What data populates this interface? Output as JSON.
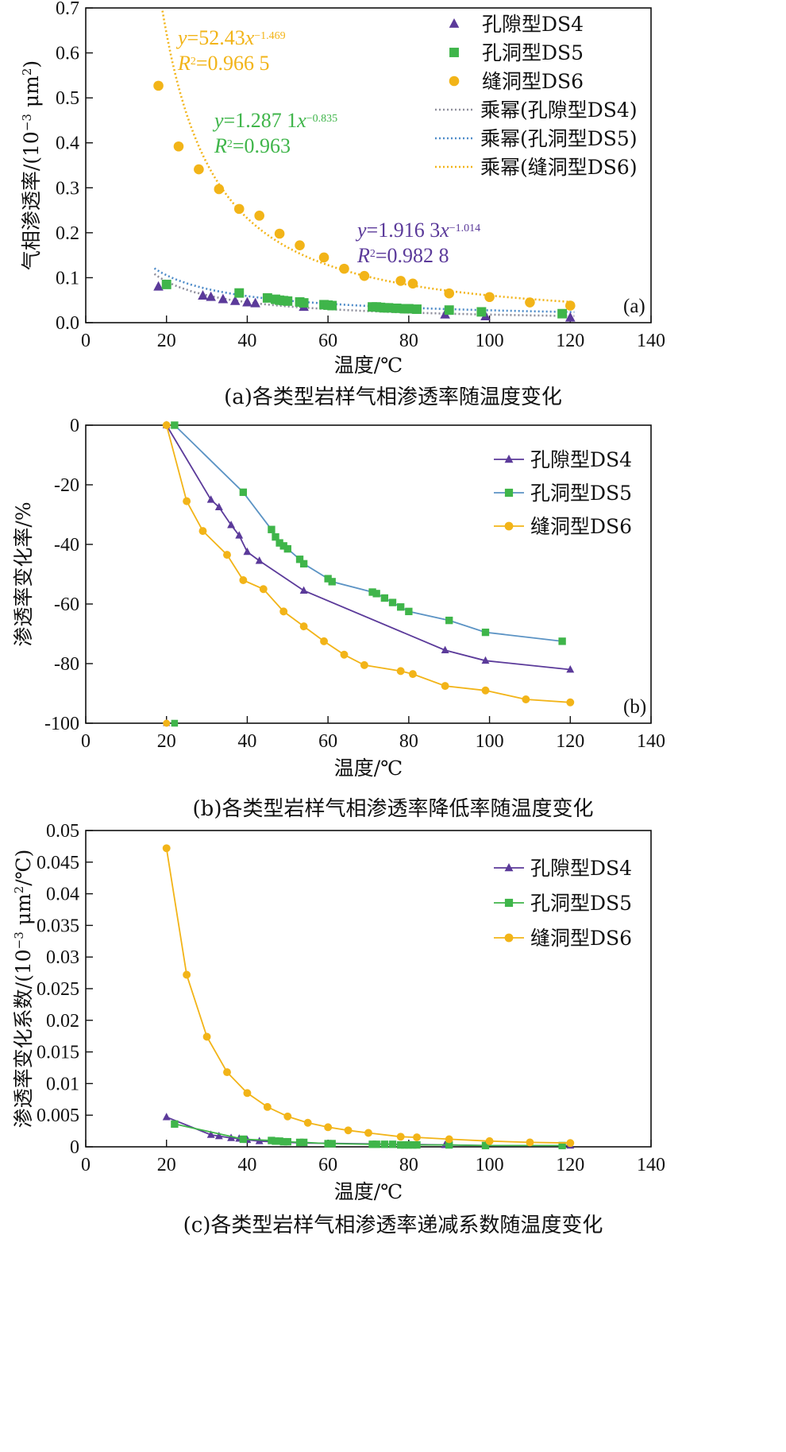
{
  "colors": {
    "DS4": "#5b3a9a",
    "DS5": "#3fb54a",
    "DS6": "#f2b418",
    "DS5_line_b": "#5b93c4"
  },
  "chart_data": [
    {
      "type": "scatter",
      "panel_tag": "(a)",
      "caption": "(a)各类型岩样气相渗透率随温度变化",
      "xlabel": "温度/℃",
      "ylabel": "气相渗透率/(10",
      "ylabel_sup": "−3",
      "ylabel_tail": "μm",
      "ylabel_sup2": "2",
      "ylabel_close": ")",
      "xlim": [
        0,
        140
      ],
      "ylim": [
        0,
        0.7
      ],
      "xticks": [
        "0",
        "20",
        "40",
        "60",
        "80",
        "100",
        "120",
        "140"
      ],
      "yticks": [
        "0.0",
        "0.1",
        "0.2",
        "0.3",
        "0.4",
        "0.5",
        "0.6",
        "0.7"
      ],
      "legend": [
        "孔隙型DS4",
        "孔洞型DS5",
        "缝洞型DS6",
        "乘幂(孔隙型DS4)",
        "乘幂(孔洞型DS5)",
        "乘幂(缝洞型DS6)"
      ],
      "series": [
        {
          "name": "孔隙型DS4",
          "marker": "triangle",
          "x": [
            18,
            29,
            31,
            34,
            37,
            40,
            42,
            54,
            89,
            99,
            120
          ],
          "y": [
            0.08,
            0.06,
            0.057,
            0.052,
            0.048,
            0.045,
            0.043,
            0.035,
            0.018,
            0.014,
            0.011
          ]
        },
        {
          "name": "孔洞型DS5",
          "marker": "square",
          "x": [
            20,
            38,
            45,
            47,
            48,
            49,
            50,
            53,
            54,
            59,
            60,
            61,
            71,
            72,
            73,
            74,
            75,
            77,
            79,
            80,
            82,
            90,
            98,
            118
          ],
          "y": [
            0.085,
            0.066,
            0.055,
            0.052,
            0.05,
            0.049,
            0.048,
            0.046,
            0.044,
            0.04,
            0.039,
            0.038,
            0.035,
            0.035,
            0.034,
            0.033,
            0.033,
            0.032,
            0.031,
            0.031,
            0.03,
            0.028,
            0.024,
            0.02
          ]
        },
        {
          "name": "缝洞型DS6",
          "marker": "circle",
          "x": [
            18,
            23,
            28,
            33,
            38,
            43,
            48,
            53,
            59,
            64,
            69,
            78,
            81,
            90,
            100,
            110,
            120
          ],
          "y": [
            0.527,
            0.392,
            0.341,
            0.297,
            0.253,
            0.238,
            0.198,
            0.172,
            0.145,
            0.12,
            0.104,
            0.093,
            0.087,
            0.065,
            0.057,
            0.045,
            0.038
          ]
        }
      ],
      "fits": [
        {
          "name": "乘幂(孔隙型DS4)",
          "a": 1.9163,
          "b": -1.014
        },
        {
          "name": "乘幂(孔洞型DS5)",
          "a": 1.2871,
          "b": -0.835
        },
        {
          "name": "乘幂(缝洞型DS6)",
          "a": 52.43,
          "b": -1.469
        }
      ],
      "equations": {
        "DS6": {
          "line1_pre": "y",
          "line1_mid": "=52.43",
          "line1_x": "x",
          "line1_sup": "−1.469",
          "line2_pre": "R",
          "line2_sup": "2",
          "line2_mid": "=0.966  5"
        },
        "DS5": {
          "line1_pre": "y",
          "line1_mid": "=1.287  1",
          "line1_x": "x",
          "line1_sup": "−0.835",
          "line2_pre": "R",
          "line2_sup": "2",
          "line2_mid": "=0.963"
        },
        "DS4": {
          "line1_pre": "y",
          "line1_mid": "=1.916  3",
          "line1_x": "x",
          "line1_sup": "−1.014",
          "line2_pre": "R",
          "line2_sup": "2",
          "line2_mid": "=0.982  8"
        }
      }
    },
    {
      "type": "line",
      "panel_tag": "(b)",
      "caption": "(b)各类型岩样气相渗透率降低率随温度变化",
      "xlabel": "温度/℃",
      "ylabel": "渗透率变化率/%",
      "xlim": [
        0,
        140
      ],
      "ylim": [
        -100,
        0
      ],
      "xticks": [
        "0",
        "20",
        "40",
        "60",
        "80",
        "100",
        "120",
        "140"
      ],
      "yticks": [
        "0",
        "-20",
        "-40",
        "-60",
        "-80",
        "-100"
      ],
      "legend": [
        "孔隙型DS4",
        "孔洞型DS5",
        "缝洞型DS6"
      ],
      "series": [
        {
          "name": "孔隙型DS4",
          "marker": "triangle",
          "x": [
            20,
            31,
            33,
            36,
            38,
            40,
            43,
            54,
            89,
            99,
            120
          ],
          "y": [
            0,
            -25,
            -27.5,
            -33.5,
            -37,
            -42.5,
            -45.5,
            -55.5,
            -75.5,
            -79,
            -82
          ]
        },
        {
          "name": "孔洞型DS5",
          "marker": "square",
          "x": [
            22,
            39,
            46,
            47,
            48,
            49,
            50,
            53,
            54,
            60,
            61,
            71,
            72,
            74,
            76,
            78,
            80,
            90,
            99,
            118
          ],
          "y": [
            0,
            -22.5,
            -35,
            -37.5,
            -39.5,
            -40.5,
            -41.5,
            -45,
            -46.5,
            -51.5,
            -52.5,
            -56,
            -56.5,
            -58,
            -59.5,
            -61,
            -62.5,
            -65.5,
            -69.5,
            -72.5
          ]
        },
        {
          "name": "缝洞型DS6",
          "marker": "circle",
          "x": [
            20,
            25,
            29,
            35,
            39,
            44,
            49,
            54,
            59,
            64,
            69,
            78,
            81,
            89,
            99,
            109,
            120
          ],
          "y": [
            0,
            -25.5,
            -35.5,
            -43.5,
            -52,
            -55,
            -62.5,
            -67.5,
            -72.5,
            -77,
            -80.5,
            -82.5,
            -83.5,
            -87.5,
            -89,
            -92,
            -93
          ]
        }
      ],
      "stray_points": [
        {
          "series": "孔隙型DS4",
          "x": 20,
          "y": -100
        },
        {
          "series": "孔洞型DS5",
          "x": 22,
          "y": -100
        },
        {
          "series": "缝洞型DS6",
          "x": 20,
          "y": -100
        }
      ]
    },
    {
      "type": "line",
      "panel_tag": "",
      "caption": "(c)各类型岩样气相渗透率递减系数随温度变化",
      "xlabel": "温度/℃",
      "ylabel": "渗透率变化系数/(10",
      "ylabel_sup": "−3",
      "ylabel_tail": "μm",
      "ylabel_sup2": "2",
      "ylabel_close": "/℃)",
      "xlim": [
        0,
        140
      ],
      "ylim": [
        0,
        0.05
      ],
      "xticks": [
        "0",
        "20",
        "40",
        "60",
        "80",
        "100",
        "120",
        "140"
      ],
      "yticks": [
        "0",
        "0.005",
        "0.01",
        "0.015",
        "0.02",
        "0.025",
        "0.03",
        "0.035",
        "0.04",
        "0.045",
        "0.05"
      ],
      "legend": [
        "孔隙型DS4",
        "孔洞型DS5",
        "缝洞型DS6"
      ],
      "series": [
        {
          "name": "孔隙型DS4",
          "marker": "triangle",
          "x": [
            20,
            31,
            33,
            36,
            38,
            40,
            43,
            54,
            89,
            99,
            120
          ],
          "y": [
            0.0047,
            0.0019,
            0.0017,
            0.0014,
            0.0013,
            0.0011,
            0.0009,
            0.0006,
            0.0003,
            0.0002,
            0.0002
          ]
        },
        {
          "name": "孔洞型DS5",
          "marker": "square",
          "x": [
            22,
            39,
            46,
            47,
            48,
            49,
            50,
            53,
            54,
            60,
            61,
            71,
            72,
            74,
            76,
            78,
            79,
            80,
            81,
            82,
            90,
            99,
            118
          ],
          "y": [
            0.0036,
            0.0012,
            0.001,
            0.0009,
            0.0009,
            0.0008,
            0.0008,
            0.0007,
            0.0007,
            0.0005,
            0.0005,
            0.0004,
            0.0004,
            0.0004,
            0.0004,
            0.0003,
            0.0003,
            0.0003,
            0.0003,
            0.0003,
            0.0003,
            0.0002,
            0.0002
          ]
        },
        {
          "name": "缝洞型DS6",
          "marker": "circle",
          "x": [
            20,
            25,
            30,
            35,
            40,
            45,
            50,
            55,
            60,
            65,
            70,
            78,
            82,
            90,
            100,
            110,
            120
          ],
          "y": [
            0.0472,
            0.0272,
            0.0174,
            0.0118,
            0.0085,
            0.0063,
            0.0048,
            0.0038,
            0.0031,
            0.0026,
            0.0022,
            0.0016,
            0.0015,
            0.0012,
            0.0009,
            0.0007,
            0.0006
          ]
        }
      ]
    }
  ]
}
